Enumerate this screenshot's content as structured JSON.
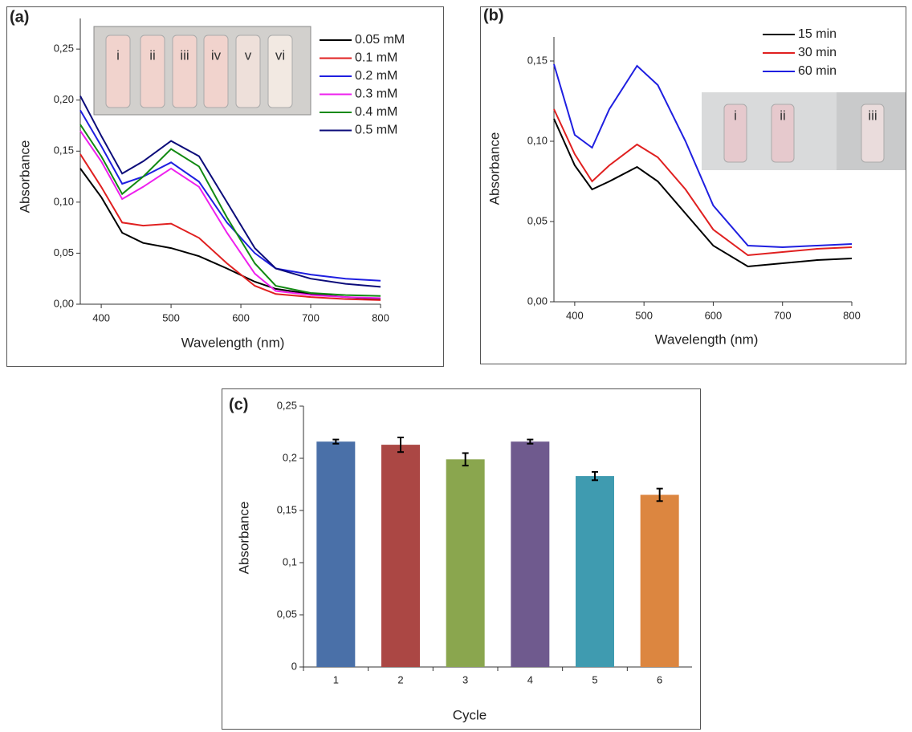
{
  "chart_data": [
    {
      "type": "line",
      "panel_label": "(a)",
      "x_label": "Wavelength (nm)",
      "y_label": "Absorbance",
      "x": [
        370,
        400,
        430,
        460,
        500,
        540,
        580,
        620,
        650,
        700,
        750,
        800
      ],
      "series": [
        {
          "name": "0.05 mM",
          "color": "#000000",
          "values": [
            0.133,
            0.105,
            0.07,
            0.06,
            0.055,
            0.047,
            0.035,
            0.022,
            0.015,
            0.01,
            0.007,
            0.005
          ]
        },
        {
          "name": "0.1 mM",
          "color": "#e02020",
          "values": [
            0.147,
            0.115,
            0.08,
            0.077,
            0.079,
            0.065,
            0.04,
            0.018,
            0.01,
            0.007,
            0.005,
            0.004
          ]
        },
        {
          "name": "0.2 mM",
          "color": "#1f1fe0",
          "values": [
            0.19,
            0.155,
            0.118,
            0.125,
            0.139,
            0.12,
            0.08,
            0.05,
            0.035,
            0.029,
            0.025,
            0.023
          ]
        },
        {
          "name": "0.3 mM",
          "color": "#ee20ee",
          "values": [
            0.17,
            0.14,
            0.103,
            0.115,
            0.133,
            0.115,
            0.07,
            0.03,
            0.013,
            0.009,
            0.007,
            0.006
          ]
        },
        {
          "name": "0.4 mM",
          "color": "#128a12",
          "values": [
            0.176,
            0.145,
            0.108,
            0.125,
            0.152,
            0.135,
            0.085,
            0.04,
            0.018,
            0.011,
            0.009,
            0.008
          ]
        },
        {
          "name": "0.5 mM",
          "color": "#0c0c7a",
          "values": [
            0.204,
            0.165,
            0.128,
            0.14,
            0.16,
            0.145,
            0.1,
            0.055,
            0.035,
            0.025,
            0.02,
            0.017
          ]
        }
      ],
      "xlim": [
        370,
        800
      ],
      "xticks": [
        400,
        500,
        600,
        700,
        800
      ],
      "ylim": [
        0,
        0.28
      ],
      "yticks": [
        {
          "value": 0,
          "label": "0,00"
        },
        {
          "value": 0.05,
          "label": "0,05"
        },
        {
          "value": 0.1,
          "label": "0,10"
        },
        {
          "value": 0.15,
          "label": "0,15"
        },
        {
          "value": 0.2,
          "label": "0,20"
        },
        {
          "value": 0.25,
          "label": "0,25"
        }
      ],
      "inset_labels": [
        "i",
        "ii",
        "iii",
        "iv",
        "v",
        "vi"
      ]
    },
    {
      "type": "line",
      "panel_label": "(b)",
      "x_label": "Wavelength (nm)",
      "y_label": "Absorbance",
      "x": [
        370,
        400,
        425,
        450,
        490,
        520,
        560,
        600,
        650,
        700,
        750,
        800
      ],
      "series": [
        {
          "name": "15 min",
          "color": "#000000",
          "values": [
            0.114,
            0.085,
            0.07,
            0.075,
            0.084,
            0.075,
            0.055,
            0.035,
            0.022,
            0.024,
            0.026,
            0.027
          ]
        },
        {
          "name": "30 min",
          "color": "#e02020",
          "values": [
            0.12,
            0.092,
            0.075,
            0.085,
            0.098,
            0.09,
            0.07,
            0.045,
            0.029,
            0.031,
            0.033,
            0.034
          ]
        },
        {
          "name": "60 min",
          "color": "#1f1fe0",
          "values": [
            0.148,
            0.104,
            0.096,
            0.12,
            0.147,
            0.135,
            0.1,
            0.06,
            0.035,
            0.034,
            0.035,
            0.036
          ]
        }
      ],
      "xlim": [
        370,
        800
      ],
      "xticks": [
        400,
        500,
        600,
        700,
        800
      ],
      "ylim": [
        0,
        0.165
      ],
      "yticks": [
        {
          "value": 0,
          "label": "0,00"
        },
        {
          "value": 0.05,
          "label": "0,05"
        },
        {
          "value": 0.1,
          "label": "0,10"
        },
        {
          "value": 0.15,
          "label": "0,15"
        }
      ],
      "inset_labels": [
        "i",
        "ii",
        "iii"
      ]
    },
    {
      "type": "bar",
      "panel_label": "(c)",
      "x_label": "Cycle",
      "y_label": "Absorbance",
      "categories": [
        "1",
        "2",
        "3",
        "4",
        "5",
        "6"
      ],
      "values": [
        0.216,
        0.213,
        0.199,
        0.216,
        0.183,
        0.165
      ],
      "errors": [
        0.002,
        0.007,
        0.006,
        0.002,
        0.004,
        0.006
      ],
      "colors": [
        "#4a70a8",
        "#ab4744",
        "#8aa64e",
        "#6f5a8e",
        "#3f9bb0",
        "#dc8640"
      ],
      "ylim": [
        0,
        0.25
      ],
      "yticks": [
        0,
        {
          "value": 0.05,
          "label": "0,05"
        },
        {
          "value": 0.1,
          "label": "0,1"
        },
        {
          "value": 0.15,
          "label": "0,15"
        },
        {
          "value": 0.2,
          "label": "0,2"
        },
        {
          "value": 0.25,
          "label": "0,25"
        }
      ]
    }
  ]
}
